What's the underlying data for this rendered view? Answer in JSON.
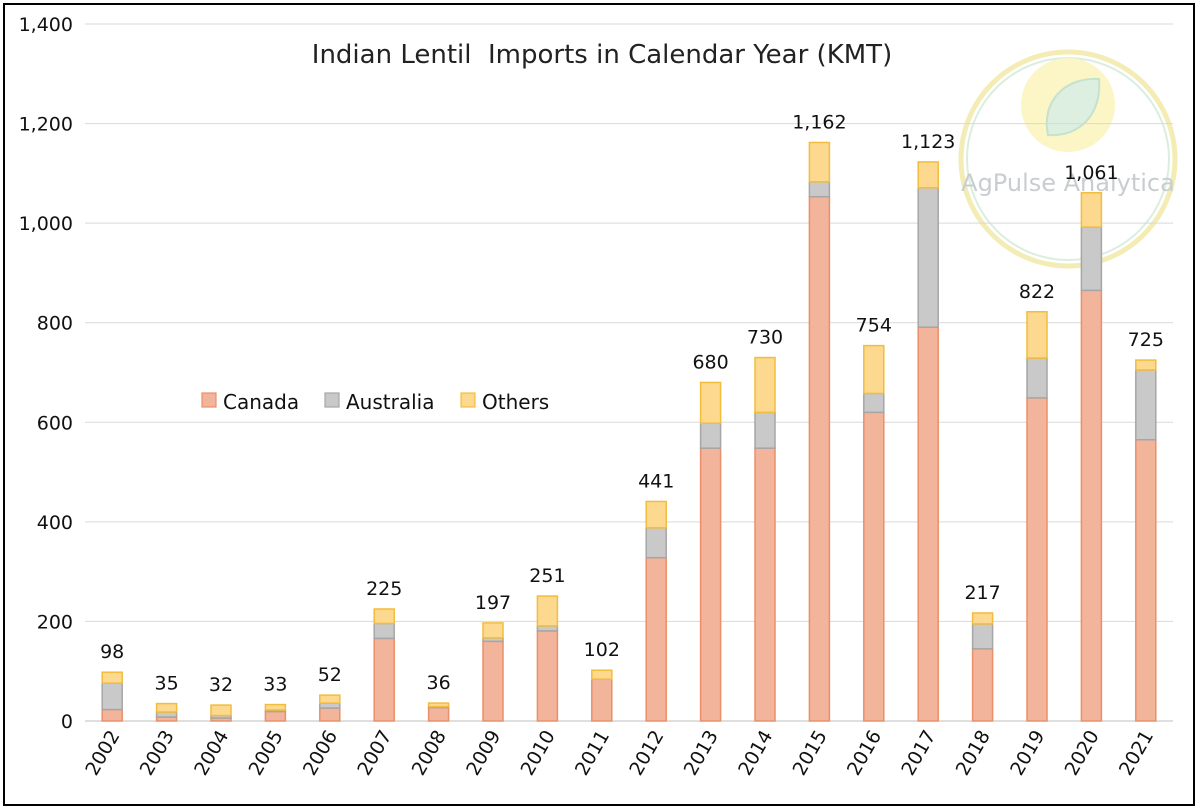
{
  "chart_data": {
    "type": "bar",
    "stacked": true,
    "title": "Indian Lentil  Imports in Calendar Year (KMT)",
    "xlabel": "",
    "ylabel": "",
    "ylim": [
      0,
      1400
    ],
    "yticks": [
      "0",
      "200",
      "400",
      "600",
      "800",
      "1,000",
      "1,200",
      "1,400"
    ],
    "grid": true,
    "legend_position": "center-left",
    "categories": [
      "2002",
      "2003",
      "2004",
      "2005",
      "2006",
      "2007",
      "2008",
      "2009",
      "2010",
      "2011",
      "2012",
      "2013",
      "2014",
      "2015",
      "2016",
      "2017",
      "2018",
      "2019",
      "2020",
      "2021"
    ],
    "series": [
      {
        "name": "Canada",
        "color": "#f2b49a",
        "edge": "#e9906a",
        "values": [
          23,
          8,
          6,
          19,
          26,
          166,
          27,
          160,
          181,
          84,
          328,
          548,
          548,
          1053,
          620,
          791,
          145,
          649,
          865,
          565
        ]
      },
      {
        "name": "Australia",
        "color": "#c9c9c9",
        "edge": "#a6a6a6",
        "values": [
          53,
          10,
          5,
          3,
          10,
          30,
          2,
          7,
          10,
          0,
          60,
          50,
          72,
          30,
          38,
          280,
          50,
          80,
          127,
          140
        ]
      },
      {
        "name": "Others",
        "color": "#fcd98e",
        "edge": "#f2bd3c",
        "values": [
          22,
          17,
          21,
          11,
          16,
          29,
          7,
          30,
          60,
          18,
          53,
          82,
          110,
          79,
          96,
          52,
          22,
          93,
          69,
          20
        ]
      }
    ],
    "totals": [
      "98",
      "35",
      "32",
      "33",
      "52",
      "225",
      "36",
      "197",
      "251",
      "102",
      "441",
      "680",
      "730",
      "1,162",
      "754",
      "1,123",
      "217",
      "822",
      "1,061",
      "725"
    ],
    "watermark": "AgPulse Analytica"
  }
}
